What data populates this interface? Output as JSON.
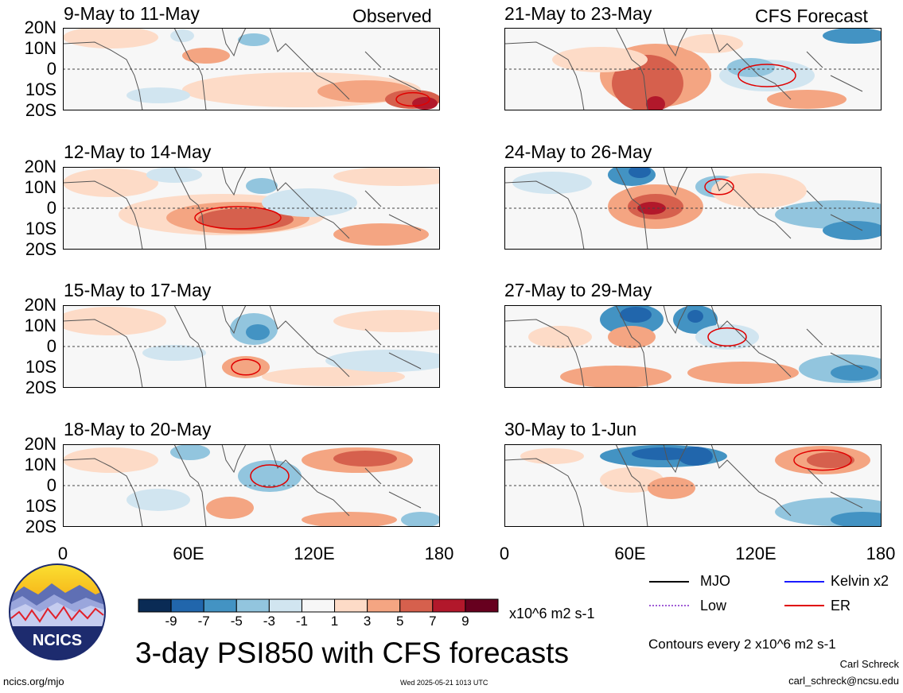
{
  "header": {
    "left_label": "Observed",
    "right_label": "CFS Forecast"
  },
  "panels": {
    "left": [
      {
        "title": "9-May to 11-May"
      },
      {
        "title": "12-May to 14-May"
      },
      {
        "title": "15-May to 17-May"
      },
      {
        "title": "18-May to 20-May"
      }
    ],
    "right": [
      {
        "title": "21-May to 23-May"
      },
      {
        "title": "24-May to 26-May"
      },
      {
        "title": "27-May to 29-May"
      },
      {
        "title": "30-May to 1-Jun"
      }
    ]
  },
  "axes": {
    "y_ticks": [
      "20N",
      "10N",
      "0",
      "10S",
      "20S"
    ],
    "x_ticks": [
      "0",
      "60E",
      "120E",
      "180"
    ]
  },
  "colorbar": {
    "labels": [
      "-9",
      "-7",
      "-5",
      "-3",
      "-1",
      "1",
      "3",
      "5",
      "7",
      "9"
    ],
    "colors": [
      "#0a2b55",
      "#2166ac",
      "#4393c3",
      "#92c5de",
      "#d1e5f0",
      "#f7f7f7",
      "#fddbc7",
      "#f4a582",
      "#d6604d",
      "#b2182b",
      "#67001f"
    ],
    "units": "x10^6 m2 s-1"
  },
  "legend": {
    "mjo": "MJO",
    "kelvin": "Kelvin x2",
    "low": "Low",
    "er": "ER",
    "mjo_color": "#000000",
    "kelvin_color": "#0000ff",
    "low_color": "#a05cd6",
    "er_color": "#e00000"
  },
  "main_title": "3-day PSI850 with CFS forecasts",
  "contour_note": "Contours every 2 x10^6 m2 s-1",
  "author": "Carl Schreck",
  "email": "carl_schreck@ncsu.edu",
  "site": "ncics.org/mjo",
  "timestamp": "Wed 2025-05-21 1013 UTC",
  "logo": {
    "text": "NCICS"
  },
  "chart_data": {
    "type": "heatmap",
    "variable": "3-day PSI850",
    "units": "x10^6 m2 s-1",
    "x_range": [
      0,
      180
    ],
    "y_range": [
      -20,
      20
    ],
    "x_ticks": [
      "0",
      "60E",
      "120E",
      "180"
    ],
    "y_ticks": [
      "20N",
      "10N",
      "0",
      "10S",
      "20S"
    ],
    "levels": [
      -9,
      -7,
      -5,
      -3,
      -1,
      1,
      3,
      5,
      7,
      9
    ],
    "contour_interval": 2,
    "filters": [
      "MJO",
      "Kelvin x2",
      "Low",
      "ER"
    ],
    "periods": [
      {
        "title": "9-May to 11-May",
        "source": "Observed"
      },
      {
        "title": "12-May to 14-May",
        "source": "Observed"
      },
      {
        "title": "15-May to 17-May",
        "source": "Observed"
      },
      {
        "title": "18-May to 20-May",
        "source": "Observed"
      },
      {
        "title": "21-May to 23-May",
        "source": "CFS Forecast"
      },
      {
        "title": "24-May to 26-May",
        "source": "CFS Forecast"
      },
      {
        "title": "27-May to 29-May",
        "source": "CFS Forecast"
      },
      {
        "title": "30-May to 1-Jun",
        "source": "CFS Forecast"
      }
    ]
  }
}
